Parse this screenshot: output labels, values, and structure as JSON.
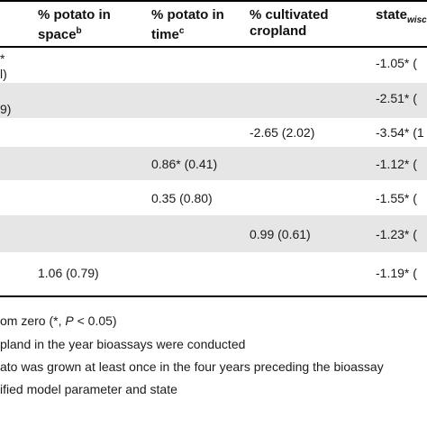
{
  "table": {
    "headers": {
      "potato_space": {
        "line1": "% potato in",
        "line2": "space",
        "sup": "b"
      },
      "potato_time": {
        "line1": "% potato in",
        "line2": "time",
        "sup": "c"
      },
      "cultivated": {
        "line1": "% cultivated",
        "line2": "cropland"
      },
      "state": {
        "main": "state",
        "sub": "wisco"
      }
    },
    "rows": [
      {
        "col0_top": "*",
        "col0_bot": "l)",
        "space": "",
        "time": "",
        "crop": "",
        "state": "-1.05* (",
        "shade": false
      },
      {
        "col0_top": "",
        "col0_bot": "9)",
        "space": "",
        "time": "",
        "crop": "",
        "state": "-2.51* (",
        "shade": true
      },
      {
        "col0_top": "",
        "col0_bot": "",
        "space": "",
        "time": "",
        "crop": "-2.65 (2.02)",
        "state": "-3.54* (1",
        "shade": false
      },
      {
        "col0_top": "",
        "col0_bot": "",
        "space": "",
        "time": "0.86* (0.41)",
        "crop": "",
        "state": "-1.12* (",
        "shade": true
      },
      {
        "col0_top": "",
        "col0_bot": "",
        "space": "",
        "time": "0.35 (0.80)",
        "crop": "",
        "state": "-1.55* (",
        "shade": false
      },
      {
        "col0_top": "",
        "col0_bot": "",
        "space": "",
        "time": "",
        "crop": "0.99 (0.61)",
        "state": "-1.23* (",
        "shade": true
      },
      {
        "col0_top": "",
        "col0_bot": "",
        "space": "1.06 (0.79)",
        "time": "",
        "crop": "",
        "state": "-1.19* (",
        "shade": false
      }
    ]
  },
  "footnotes": {
    "line1_a": "om zero (*, ",
    "line1_p": "P",
    "line1_b": " < 0.05)",
    "line2": "pland in the year bioassays were conducted",
    "line3": "ato was grown at least once in the four years preceding the bioassay",
    "line4": "ified model parameter and state"
  }
}
